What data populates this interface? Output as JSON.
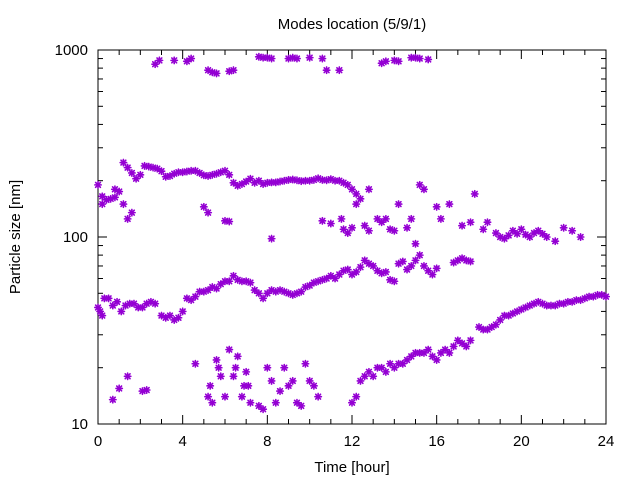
{
  "chart_data": {
    "type": "scatter",
    "title": "Modes location (5/9/1)",
    "xlabel": "Time [hour]",
    "ylabel": "Particle size [nm]",
    "xlim": [
      0,
      24
    ],
    "ylim": [
      10,
      1000
    ],
    "yscale": "log",
    "x_ticks": [
      0,
      4,
      8,
      12,
      16,
      20,
      24
    ],
    "x_tick_labels": [
      "0",
      "4",
      "8",
      "12",
      "16",
      "20",
      "24"
    ],
    "y_ticks": [
      10,
      100,
      1000
    ],
    "y_tick_labels": [
      "10",
      "100",
      "1000"
    ],
    "grid": false,
    "marker": "asterisk",
    "series_color": "#9400d3",
    "series": [
      {
        "points": [
          [
            0.0,
            42
          ],
          [
            0.1,
            40
          ],
          [
            0.2,
            38
          ],
          [
            0.3,
            47
          ],
          [
            0.5,
            47
          ],
          [
            0.7,
            43
          ],
          [
            0.9,
            45
          ],
          [
            1.1,
            40
          ],
          [
            1.3,
            43
          ],
          [
            1.5,
            44
          ],
          [
            1.7,
            44
          ],
          [
            1.9,
            42
          ],
          [
            2.1,
            42
          ],
          [
            2.3,
            44
          ],
          [
            2.5,
            45
          ],
          [
            2.7,
            44
          ],
          [
            3.0,
            38
          ],
          [
            3.2,
            37
          ],
          [
            3.4,
            38
          ],
          [
            3.6,
            36
          ],
          [
            3.8,
            37
          ],
          [
            4.0,
            40
          ],
          [
            4.2,
            47
          ],
          [
            4.4,
            46
          ],
          [
            4.6,
            48
          ],
          [
            4.8,
            51
          ],
          [
            5.0,
            51
          ],
          [
            5.2,
            52
          ],
          [
            5.4,
            54
          ],
          [
            5.6,
            53
          ],
          [
            5.8,
            56
          ],
          [
            6.0,
            58
          ],
          [
            6.2,
            58
          ],
          [
            6.4,
            62
          ],
          [
            6.6,
            59
          ],
          [
            6.8,
            58
          ],
          [
            7.0,
            58
          ],
          [
            7.2,
            57
          ],
          [
            7.4,
            52
          ],
          [
            7.6,
            50
          ],
          [
            7.8,
            47
          ],
          [
            8.0,
            50
          ],
          [
            8.2,
            52
          ],
          [
            8.4,
            51
          ],
          [
            8.6,
            52
          ],
          [
            8.8,
            51
          ],
          [
            9.0,
            50
          ],
          [
            9.2,
            49
          ],
          [
            9.4,
            50
          ],
          [
            9.6,
            51
          ],
          [
            9.8,
            54
          ],
          [
            10.0,
            55
          ],
          [
            10.2,
            57
          ],
          [
            10.4,
            58
          ],
          [
            10.6,
            59
          ],
          [
            10.8,
            60
          ],
          [
            11.0,
            62
          ],
          [
            11.2,
            60
          ],
          [
            11.4,
            63
          ],
          [
            11.6,
            66
          ],
          [
            11.8,
            67
          ],
          [
            12.0,
            63
          ],
          [
            12.2,
            65
          ],
          [
            12.4,
            69
          ],
          [
            12.6,
            75
          ],
          [
            12.8,
            72
          ],
          [
            13.0,
            70
          ],
          [
            13.2,
            66
          ],
          [
            13.4,
            64
          ],
          [
            13.6,
            65
          ],
          [
            13.8,
            59
          ],
          [
            14.0,
            58
          ],
          [
            14.2,
            72
          ],
          [
            14.4,
            74
          ],
          [
            14.6,
            67
          ],
          [
            14.8,
            70
          ],
          [
            15.0,
            75
          ],
          [
            15.2,
            80
          ],
          [
            15.4,
            70
          ],
          [
            15.6,
            66
          ],
          [
            15.8,
            63
          ],
          [
            16.0,
            68
          ],
          [
            16.8,
            73
          ],
          [
            17.0,
            75
          ],
          [
            17.2,
            77
          ],
          [
            17.4,
            75
          ],
          [
            17.6,
            74
          ],
          [
            0.0,
            190
          ],
          [
            0.2,
            165
          ],
          [
            0.4,
            158
          ],
          [
            0.6,
            160
          ],
          [
            0.8,
            163
          ],
          [
            1.0,
            175
          ],
          [
            1.2,
            250
          ],
          [
            1.4,
            235
          ],
          [
            1.6,
            220
          ],
          [
            1.8,
            205
          ],
          [
            2.0,
            215
          ],
          [
            2.2,
            240
          ],
          [
            2.4,
            238
          ],
          [
            2.6,
            235
          ],
          [
            2.8,
            232
          ],
          [
            3.0,
            225
          ],
          [
            3.2,
            210
          ],
          [
            3.4,
            212
          ],
          [
            3.6,
            218
          ],
          [
            3.8,
            222
          ],
          [
            4.0,
            222
          ],
          [
            4.2,
            224
          ],
          [
            4.4,
            226
          ],
          [
            4.6,
            226
          ],
          [
            4.8,
            220
          ],
          [
            5.0,
            214
          ],
          [
            5.2,
            212
          ],
          [
            5.4,
            215
          ],
          [
            5.6,
            218
          ],
          [
            5.8,
            222
          ],
          [
            6.0,
            226
          ],
          [
            6.2,
            215
          ],
          [
            6.4,
            195
          ],
          [
            6.6,
            188
          ],
          [
            6.8,
            192
          ],
          [
            7.0,
            198
          ],
          [
            7.2,
            205
          ],
          [
            7.4,
            195
          ],
          [
            7.6,
            200
          ],
          [
            7.8,
            192
          ],
          [
            8.0,
            195
          ],
          [
            8.2,
            196
          ],
          [
            8.4,
            196
          ],
          [
            8.6,
            198
          ],
          [
            8.8,
            200
          ],
          [
            9.0,
            202
          ],
          [
            9.2,
            203
          ],
          [
            9.4,
            201
          ],
          [
            9.6,
            199
          ],
          [
            9.8,
            200
          ],
          [
            10.0,
            200
          ],
          [
            10.2,
            202
          ],
          [
            10.4,
            206
          ],
          [
            10.6,
            202
          ],
          [
            10.8,
            201
          ],
          [
            11.0,
            204
          ],
          [
            11.2,
            200
          ],
          [
            11.4,
            200
          ],
          [
            11.6,
            195
          ],
          [
            11.8,
            190
          ],
          [
            12.0,
            180
          ],
          [
            12.2,
            170
          ],
          [
            12.4,
            160
          ],
          [
            12.8,
            180
          ],
          [
            0.2,
            150
          ],
          [
            0.8,
            180
          ],
          [
            1.2,
            150
          ],
          [
            1.4,
            125
          ],
          [
            1.6,
            135
          ],
          [
            5.0,
            145
          ],
          [
            5.2,
            135
          ],
          [
            6.0,
            122
          ],
          [
            6.2,
            121
          ],
          [
            8.2,
            98
          ],
          [
            10.6,
            122
          ],
          [
            11.0,
            118
          ],
          [
            11.5,
            125
          ],
          [
            11.6,
            110
          ],
          [
            11.8,
            105
          ],
          [
            12.0,
            112
          ],
          [
            12.2,
            150
          ],
          [
            12.6,
            115
          ],
          [
            12.8,
            108
          ],
          [
            13.2,
            125
          ],
          [
            13.4,
            120
          ],
          [
            13.6,
            125
          ],
          [
            13.8,
            110
          ],
          [
            14.0,
            108
          ],
          [
            14.2,
            150
          ],
          [
            14.6,
            112
          ],
          [
            14.8,
            125
          ],
          [
            15.0,
            92
          ],
          [
            15.2,
            190
          ],
          [
            15.4,
            180
          ],
          [
            16.0,
            145
          ],
          [
            16.2,
            125
          ],
          [
            16.6,
            150
          ],
          [
            17.2,
            115
          ],
          [
            17.6,
            120
          ],
          [
            17.8,
            170
          ],
          [
            18.2,
            110
          ],
          [
            18.4,
            120
          ],
          [
            18.8,
            105
          ],
          [
            19.0,
            100
          ],
          [
            19.2,
            98
          ],
          [
            19.4,
            102
          ],
          [
            19.6,
            108
          ],
          [
            19.8,
            104
          ],
          [
            20.0,
            110
          ],
          [
            20.2,
            103
          ],
          [
            20.4,
            100
          ],
          [
            20.6,
            105
          ],
          [
            20.8,
            108
          ],
          [
            21.0,
            104
          ],
          [
            21.2,
            100
          ],
          [
            21.6,
            95
          ],
          [
            22.0,
            112
          ],
          [
            22.4,
            108
          ],
          [
            22.8,
            100
          ],
          [
            12.0,
            13
          ],
          [
            12.2,
            14
          ],
          [
            12.4,
            17
          ],
          [
            12.6,
            18
          ],
          [
            12.8,
            19
          ],
          [
            13.0,
            18
          ],
          [
            13.2,
            20
          ],
          [
            13.4,
            20
          ],
          [
            13.6,
            19
          ],
          [
            13.8,
            21
          ],
          [
            14.0,
            20
          ],
          [
            14.2,
            21
          ],
          [
            14.4,
            21
          ],
          [
            14.6,
            22
          ],
          [
            14.8,
            23
          ],
          [
            15.0,
            24
          ],
          [
            15.2,
            24
          ],
          [
            15.4,
            24
          ],
          [
            15.6,
            25
          ],
          [
            15.8,
            23
          ],
          [
            16.0,
            22
          ],
          [
            16.2,
            24
          ],
          [
            16.4,
            25
          ],
          [
            16.6,
            24
          ],
          [
            16.8,
            26
          ],
          [
            17.0,
            28
          ],
          [
            17.2,
            27
          ],
          [
            17.4,
            26
          ],
          [
            17.6,
            28
          ],
          [
            18.0,
            33
          ],
          [
            18.2,
            32
          ],
          [
            18.4,
            32
          ],
          [
            18.6,
            33
          ],
          [
            18.8,
            34
          ],
          [
            19.0,
            36
          ],
          [
            19.2,
            38
          ],
          [
            19.4,
            38
          ],
          [
            19.6,
            39
          ],
          [
            19.8,
            40
          ],
          [
            20.0,
            41
          ],
          [
            20.2,
            42
          ],
          [
            20.4,
            43
          ],
          [
            20.6,
            44
          ],
          [
            20.8,
            45
          ],
          [
            21.0,
            44
          ],
          [
            21.2,
            43
          ],
          [
            21.4,
            43
          ],
          [
            21.6,
            43
          ],
          [
            21.8,
            44
          ],
          [
            22.0,
            44
          ],
          [
            22.2,
            45
          ],
          [
            22.4,
            45
          ],
          [
            22.6,
            46
          ],
          [
            22.8,
            46
          ],
          [
            23.0,
            47
          ],
          [
            23.2,
            48
          ],
          [
            23.4,
            48
          ],
          [
            23.6,
            49
          ],
          [
            23.8,
            49
          ],
          [
            24.0,
            48
          ],
          [
            0.7,
            13.5
          ],
          [
            1.0,
            15.5
          ],
          [
            1.4,
            18
          ],
          [
            2.1,
            15
          ],
          [
            2.3,
            15.2
          ],
          [
            4.6,
            21
          ],
          [
            5.2,
            14
          ],
          [
            5.3,
            16
          ],
          [
            5.4,
            13
          ],
          [
            5.6,
            22
          ],
          [
            5.7,
            20
          ],
          [
            5.8,
            18
          ],
          [
            6.0,
            14
          ],
          [
            6.2,
            25
          ],
          [
            6.4,
            18
          ],
          [
            6.5,
            20
          ],
          [
            6.6,
            23
          ],
          [
            6.8,
            14
          ],
          [
            6.9,
            16
          ],
          [
            7.0,
            19
          ],
          [
            7.1,
            16
          ],
          [
            7.2,
            13
          ],
          [
            7.6,
            12.5
          ],
          [
            7.8,
            12
          ],
          [
            8.0,
            20
          ],
          [
            8.2,
            17
          ],
          [
            8.4,
            13
          ],
          [
            8.6,
            15
          ],
          [
            8.8,
            20
          ],
          [
            9.0,
            16
          ],
          [
            9.2,
            17
          ],
          [
            9.4,
            13
          ],
          [
            9.6,
            12.5
          ],
          [
            9.8,
            21
          ],
          [
            10.0,
            17
          ],
          [
            10.2,
            16
          ],
          [
            10.4,
            14
          ],
          [
            2.7,
            840
          ],
          [
            2.9,
            880
          ],
          [
            3.6,
            880
          ],
          [
            4.2,
            870
          ],
          [
            4.4,
            900
          ],
          [
            5.2,
            780
          ],
          [
            5.4,
            760
          ],
          [
            5.6,
            750
          ],
          [
            6.2,
            770
          ],
          [
            6.4,
            780
          ],
          [
            7.6,
            920
          ],
          [
            7.8,
            910
          ],
          [
            8.0,
            910
          ],
          [
            8.2,
            900
          ],
          [
            9.0,
            900
          ],
          [
            9.2,
            910
          ],
          [
            9.4,
            900
          ],
          [
            10.0,
            910
          ],
          [
            10.6,
            900
          ],
          [
            10.8,
            780
          ],
          [
            11.4,
            780
          ],
          [
            13.4,
            850
          ],
          [
            13.6,
            870
          ],
          [
            14.0,
            880
          ],
          [
            14.2,
            870
          ],
          [
            14.8,
            910
          ],
          [
            15.0,
            910
          ],
          [
            15.2,
            900
          ],
          [
            15.6,
            890
          ]
        ]
      }
    ]
  }
}
